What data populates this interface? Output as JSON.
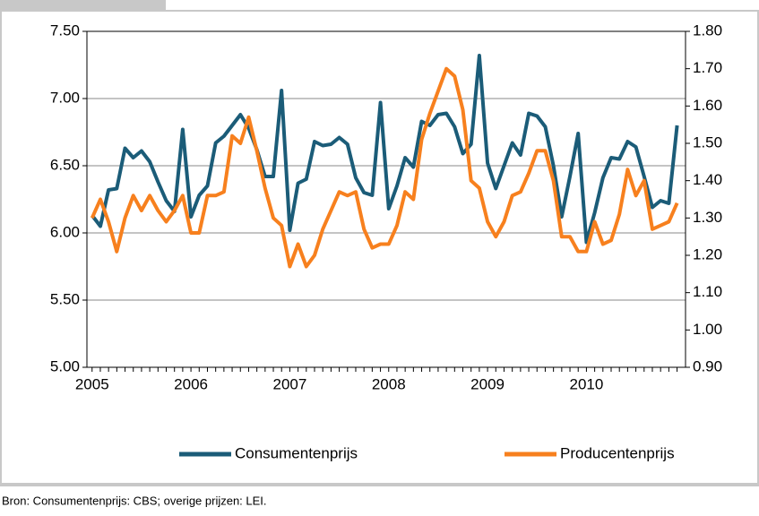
{
  "chart_data": {
    "type": "line",
    "source": "Bron: Consumentenprijs: CBS; overige prijzen: LEI.",
    "categories": [
      "2005",
      null,
      null,
      null,
      null,
      null,
      null,
      null,
      null,
      null,
      null,
      null,
      "2006",
      null,
      null,
      null,
      null,
      null,
      null,
      null,
      null,
      null,
      null,
      null,
      "2007",
      null,
      null,
      null,
      null,
      null,
      null,
      null,
      null,
      null,
      null,
      null,
      "2008",
      null,
      null,
      null,
      null,
      null,
      null,
      null,
      null,
      null,
      null,
      null,
      "2009",
      null,
      null,
      null,
      null,
      null,
      null,
      null,
      null,
      null,
      null,
      null,
      "2010",
      null,
      null,
      null,
      null,
      null,
      null,
      null,
      null,
      null,
      null,
      null
    ],
    "series": [
      {
        "name": "Consumentenprijs",
        "color": "#1b5c78",
        "axis": "y",
        "values": [
          6.13,
          6.05,
          6.32,
          6.33,
          6.63,
          6.56,
          6.61,
          6.53,
          6.38,
          6.24,
          6.16,
          6.77,
          6.12,
          6.28,
          6.35,
          6.67,
          6.72,
          6.8,
          6.88,
          6.78,
          6.62,
          6.42,
          6.42,
          7.06,
          6.02,
          6.37,
          6.4,
          6.68,
          6.65,
          6.66,
          6.71,
          6.66,
          6.41,
          6.3,
          6.28,
          6.97,
          6.18,
          6.35,
          6.56,
          6.49,
          6.83,
          6.8,
          6.88,
          6.89,
          6.79,
          6.59,
          6.66,
          7.32,
          6.52,
          6.33,
          6.5,
          6.67,
          6.58,
          6.89,
          6.87,
          6.79,
          6.5,
          6.12,
          6.42,
          6.74,
          5.93,
          6.15,
          6.41,
          6.56,
          6.55,
          6.68,
          6.64,
          6.42,
          6.19,
          6.24,
          6.22,
          6.8
        ]
      },
      {
        "name": "Producentenprijs",
        "color": "#f7801e",
        "axis": "y2",
        "values": [
          1.3,
          1.35,
          1.29,
          1.21,
          1.3,
          1.36,
          1.32,
          1.36,
          1.32,
          1.29,
          1.32,
          1.36,
          1.26,
          1.26,
          1.36,
          1.36,
          1.37,
          1.52,
          1.5,
          1.57,
          1.48,
          1.38,
          1.3,
          1.28,
          1.17,
          1.23,
          1.17,
          1.2,
          1.27,
          1.32,
          1.37,
          1.36,
          1.37,
          1.27,
          1.22,
          1.23,
          1.23,
          1.28,
          1.37,
          1.35,
          1.51,
          1.58,
          1.64,
          1.7,
          1.68,
          1.59,
          1.4,
          1.38,
          1.29,
          1.25,
          1.29,
          1.36,
          1.37,
          1.42,
          1.48,
          1.48,
          1.4,
          1.25,
          1.25,
          1.21,
          1.21,
          1.29,
          1.23,
          1.24,
          1.31,
          1.43,
          1.36,
          1.4,
          1.27,
          1.28,
          1.29,
          1.34
        ]
      }
    ],
    "ylim": [
      5.0,
      7.5
    ],
    "yticks": [
      {
        "value": 5.0,
        "label": "5.00"
      },
      {
        "value": 5.5,
        "label": "5.50"
      },
      {
        "value": 6.0,
        "label": "6.00"
      },
      {
        "value": 6.5,
        "label": "6.50"
      },
      {
        "value": 7.0,
        "label": "7.00"
      },
      {
        "value": 7.5,
        "label": "7.50"
      }
    ],
    "y2lim": [
      0.9,
      1.8
    ],
    "y2ticks": [
      {
        "value": 0.9,
        "label": "0.90"
      },
      {
        "value": 1.0,
        "label": "1.00"
      },
      {
        "value": 1.1,
        "label": "1.10"
      },
      {
        "value": 1.2,
        "label": "1.20"
      },
      {
        "value": 1.3,
        "label": "1.30"
      },
      {
        "value": 1.4,
        "label": "1.40"
      },
      {
        "value": 1.5,
        "label": "1.50"
      },
      {
        "value": 1.6,
        "label": "1.60"
      },
      {
        "value": 1.7,
        "label": "1.70"
      },
      {
        "value": 1.8,
        "label": "1.80"
      }
    ],
    "grid": true,
    "legend": "bottom"
  }
}
